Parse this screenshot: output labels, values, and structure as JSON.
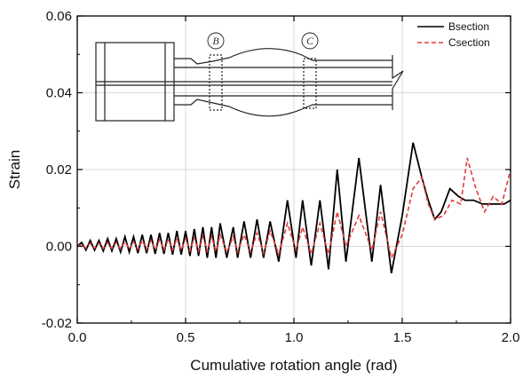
{
  "chart_data": {
    "type": "line",
    "xlabel": "Cumulative rotation angle (rad)",
    "ylabel": "Strain",
    "xlim": [
      0.0,
      2.0
    ],
    "ylim": [
      -0.02,
      0.06
    ],
    "xticks": [
      "0.0",
      "0.5",
      "1.0",
      "1.5",
      "2.0"
    ],
    "yticks": [
      "-0.02",
      "0.00",
      "0.02",
      "0.04",
      "0.06"
    ],
    "grid": true,
    "legend_position": "top-right",
    "series": [
      {
        "name": "Bsection",
        "color": "#000000",
        "style": "solid",
        "x": [
          0.0,
          0.02,
          0.04,
          0.06,
          0.08,
          0.1,
          0.12,
          0.14,
          0.16,
          0.18,
          0.2,
          0.22,
          0.24,
          0.26,
          0.28,
          0.3,
          0.32,
          0.34,
          0.36,
          0.38,
          0.4,
          0.42,
          0.44,
          0.46,
          0.48,
          0.5,
          0.52,
          0.54,
          0.56,
          0.58,
          0.6,
          0.62,
          0.64,
          0.66,
          0.69,
          0.72,
          0.74,
          0.77,
          0.8,
          0.83,
          0.86,
          0.89,
          0.93,
          0.97,
          1.01,
          1.04,
          1.08,
          1.12,
          1.16,
          1.2,
          1.24,
          1.3,
          1.36,
          1.4,
          1.45,
          1.5,
          1.55,
          1.59,
          1.62,
          1.65,
          1.68,
          1.72,
          1.76,
          1.79,
          1.83,
          1.87,
          1.92,
          1.97,
          2.0
        ],
        "values": [
          0.0,
          0.001,
          -0.001,
          0.0015,
          -0.001,
          0.0015,
          -0.0012,
          0.002,
          -0.0012,
          0.002,
          -0.0015,
          0.0025,
          -0.0015,
          0.0025,
          -0.0018,
          0.003,
          -0.0018,
          0.003,
          -0.002,
          0.0035,
          -0.002,
          0.0035,
          -0.0022,
          0.004,
          -0.0022,
          0.004,
          -0.0025,
          0.0045,
          -0.0025,
          0.005,
          -0.003,
          0.005,
          -0.003,
          0.006,
          -0.003,
          0.005,
          -0.003,
          0.0065,
          -0.003,
          0.007,
          -0.003,
          0.0065,
          -0.004,
          0.012,
          -0.003,
          0.012,
          -0.005,
          0.012,
          -0.006,
          0.02,
          -0.004,
          0.023,
          -0.004,
          0.016,
          -0.007,
          0.008,
          0.027,
          0.018,
          0.012,
          0.007,
          0.009,
          0.015,
          0.013,
          0.012,
          0.012,
          0.011,
          0.011,
          0.011,
          0.012
        ]
      },
      {
        "name": "Csection",
        "color": "#e23b3b",
        "style": "dashed",
        "x": [
          0.0,
          0.02,
          0.04,
          0.06,
          0.08,
          0.1,
          0.12,
          0.14,
          0.16,
          0.18,
          0.2,
          0.22,
          0.24,
          0.26,
          0.28,
          0.3,
          0.32,
          0.34,
          0.36,
          0.38,
          0.4,
          0.42,
          0.44,
          0.46,
          0.48,
          0.5,
          0.52,
          0.54,
          0.56,
          0.58,
          0.6,
          0.62,
          0.64,
          0.66,
          0.69,
          0.72,
          0.74,
          0.77,
          0.8,
          0.83,
          0.86,
          0.89,
          0.93,
          0.97,
          1.01,
          1.04,
          1.08,
          1.12,
          1.16,
          1.2,
          1.24,
          1.3,
          1.36,
          1.4,
          1.45,
          1.5,
          1.55,
          1.59,
          1.62,
          1.65,
          1.69,
          1.73,
          1.77,
          1.8,
          1.84,
          1.88,
          1.92,
          1.96,
          2.0
        ],
        "values": [
          0.0,
          0.0005,
          -0.0005,
          0.0008,
          -0.0005,
          0.0008,
          -0.0006,
          0.001,
          -0.0006,
          0.001,
          -0.0007,
          0.0012,
          -0.0007,
          0.0012,
          -0.0008,
          0.0015,
          -0.0008,
          0.0015,
          -0.0009,
          0.0017,
          -0.0009,
          0.0018,
          -0.001,
          0.002,
          -0.001,
          0.002,
          -0.0012,
          0.0022,
          -0.0012,
          0.0025,
          -0.0013,
          0.0025,
          -0.0013,
          0.003,
          -0.0015,
          0.0025,
          -0.0015,
          0.003,
          -0.0015,
          0.0035,
          -0.0018,
          0.004,
          -0.002,
          0.006,
          -0.001,
          0.005,
          -0.002,
          0.006,
          -0.002,
          0.009,
          0.0,
          0.008,
          -0.001,
          0.009,
          -0.003,
          0.003,
          0.015,
          0.018,
          0.011,
          0.007,
          0.008,
          0.012,
          0.011,
          0.023,
          0.015,
          0.009,
          0.013,
          0.011,
          0.02
        ]
      }
    ],
    "inset_labels": [
      "B",
      "C"
    ]
  }
}
